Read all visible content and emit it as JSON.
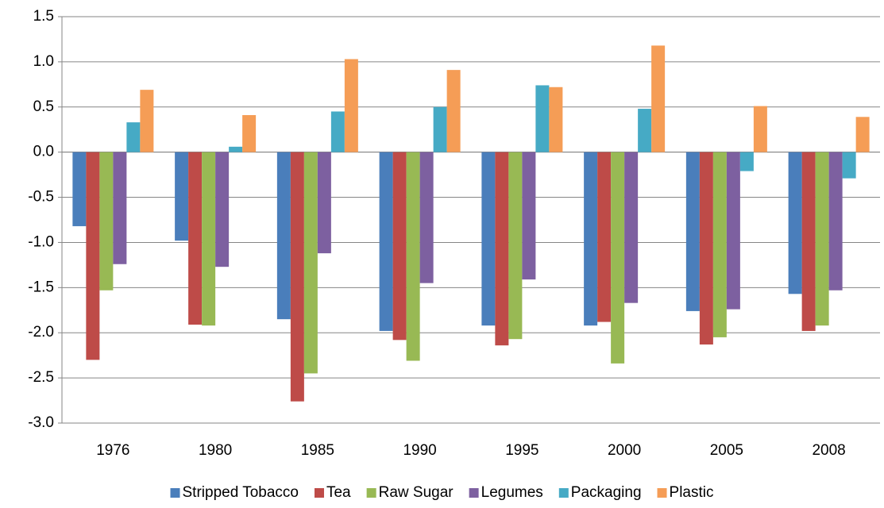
{
  "chart_data": {
    "type": "bar",
    "categories": [
      "1976",
      "1980",
      "1985",
      "1990",
      "1995",
      "2000",
      "2005",
      "2008"
    ],
    "series": [
      {
        "name": "Stripped Tobacco",
        "color": "#4a7ebb",
        "values": [
          -0.82,
          -0.98,
          -1.85,
          -1.98,
          -1.92,
          -1.92,
          -1.76,
          -1.57
        ]
      },
      {
        "name": "Tea",
        "color": "#be4b48",
        "values": [
          -2.3,
          -1.91,
          -2.76,
          -2.08,
          -2.14,
          -1.88,
          -2.13,
          -1.98
        ]
      },
      {
        "name": "Raw Sugar",
        "color": "#98b954",
        "values": [
          -1.53,
          -1.92,
          -2.45,
          -2.31,
          -2.07,
          -2.34,
          -2.05,
          -1.92
        ]
      },
      {
        "name": "Legumes",
        "color": "#7d60a0",
        "values": [
          -1.24,
          -1.27,
          -1.12,
          -1.45,
          -1.41,
          -1.67,
          -1.74,
          -1.53
        ]
      },
      {
        "name": "Packaging",
        "color": "#46aac5",
        "values": [
          0.33,
          0.06,
          0.45,
          0.5,
          0.74,
          0.48,
          -0.21,
          -0.29
        ]
      },
      {
        "name": "Plastic",
        "color": "#f59d56",
        "values": [
          0.69,
          0.41,
          1.03,
          0.91,
          0.72,
          1.18,
          0.51,
          0.39
        ]
      }
    ],
    "ylim": [
      -3.0,
      1.5
    ],
    "yticks": [
      1.5,
      {
        "value": 1,
        "label": "1.0"
      },
      0.5,
      {
        "value": 0,
        "label": "0.0"
      },
      -0.5,
      {
        "value": -1,
        "label": "-1.0"
      },
      -1.5,
      {
        "value": -2,
        "label": "-2.0"
      },
      -2.5,
      {
        "value": -3,
        "label": "-3.0"
      }
    ],
    "grid": true,
    "legend": "bottom"
  }
}
